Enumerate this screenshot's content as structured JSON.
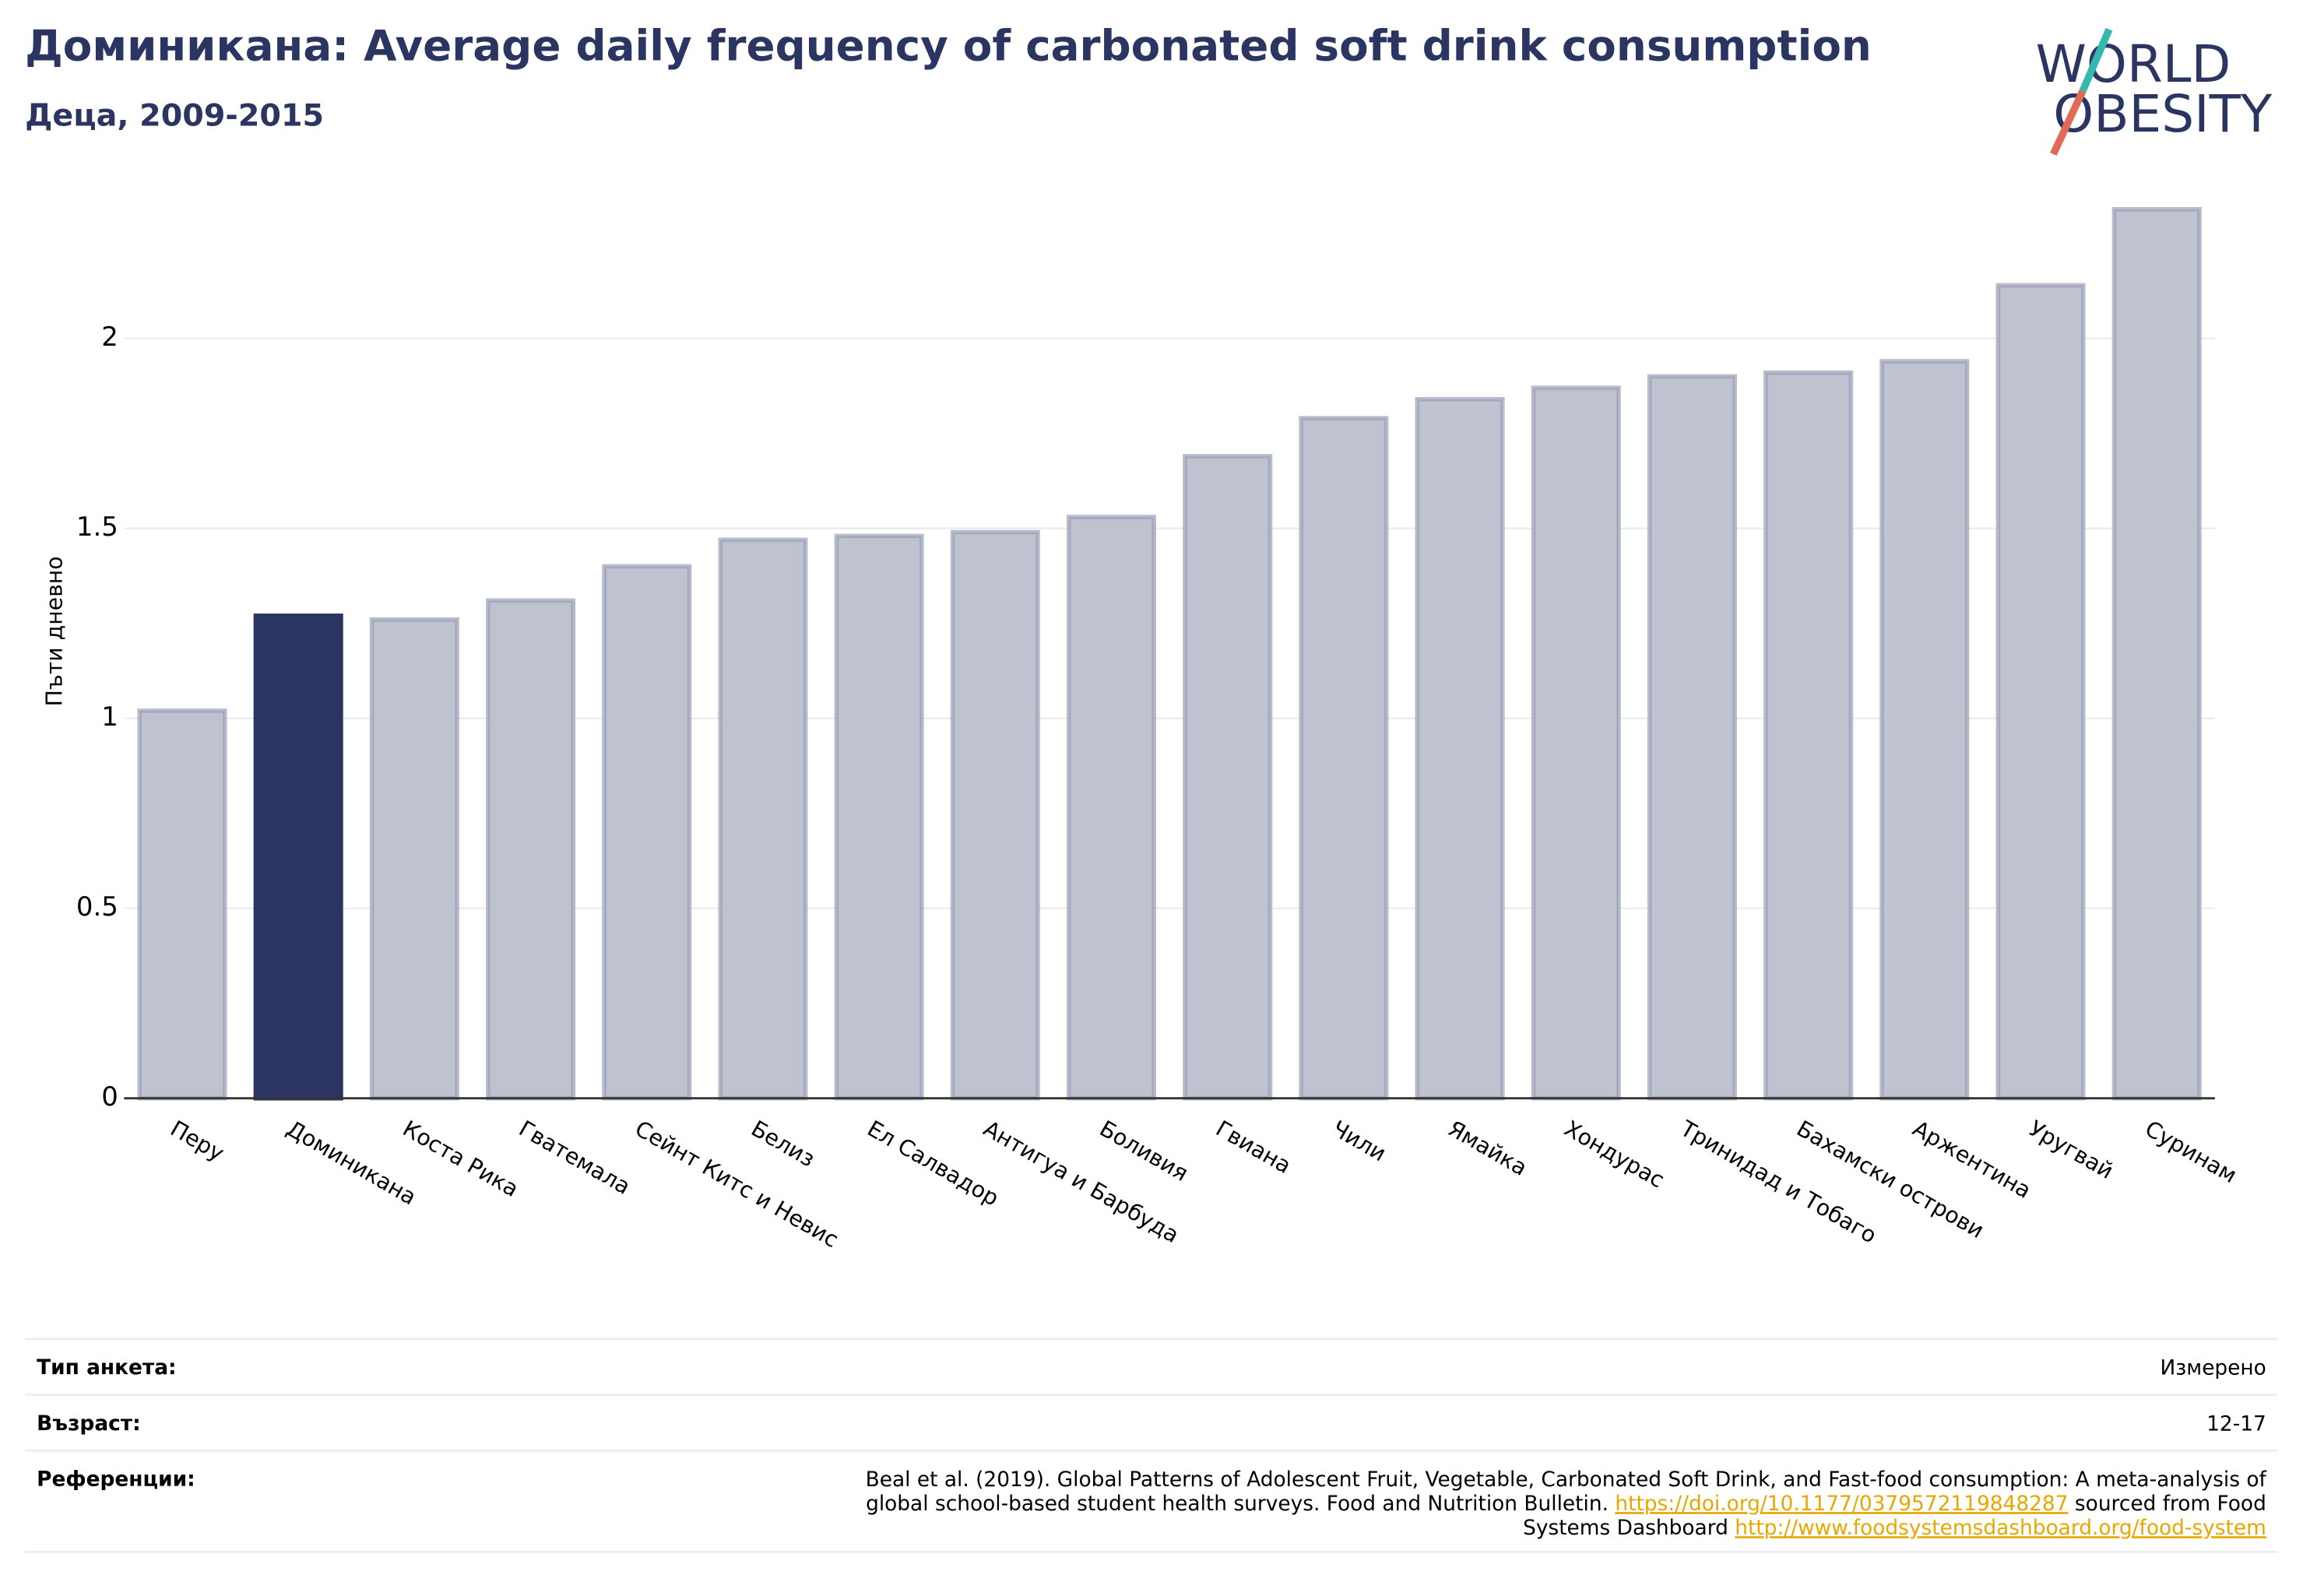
{
  "chart_data": {
    "type": "bar",
    "title": "Доминикана: Average daily frequency of carbonated soft drink consumption",
    "subtitle": "Деца, 2009-2015",
    "logo": [
      "WORLD",
      "OBESITY"
    ],
    "ylabel": "Пъти дневно",
    "categories": [
      "Перу",
      "Доминикана",
      "Коста Рика",
      "Гватемала",
      "Сейнт Китс и Невис",
      "Белиз",
      "Ел Салвадор",
      "Антигуа и Барбуда",
      "Боливия",
      "Гвиана",
      "Чили",
      "Ямайка",
      "Хондурас",
      "Тринидад и Тобаго",
      "Бахамски острови",
      "Аржентина",
      "Уругвай",
      "Суринам"
    ],
    "values": [
      1.02,
      1.27,
      1.26,
      1.31,
      1.4,
      1.47,
      1.48,
      1.49,
      1.53,
      1.69,
      1.79,
      1.84,
      1.87,
      1.9,
      1.91,
      1.94,
      2.14,
      2.34
    ],
    "color": "#bfc2cf",
    "highlight": {
      "category": "Доминикана",
      "color": "#2b3561"
    },
    "ylim": [
      0,
      2.4
    ],
    "yticks": [
      0,
      0.5,
      1,
      1.5,
      2
    ],
    "grid": true
  },
  "footer": {
    "rows": [
      {
        "label": "Тип анкета:",
        "value": [
          [
            {
              "text": "Измерено"
            }
          ]
        ]
      },
      {
        "label": "Възраст:",
        "value": [
          [
            {
              "text": "12-17"
            }
          ]
        ]
      },
      {
        "label": "Референции:",
        "value": [
          [
            {
              "text": "Beal et al. (2019). Global Patterns of Adolescent Fruit, Vegetable, Carbonated Soft Drink, and Fast-food consumption: A meta-analysis of"
            }
          ],
          [
            {
              "text": "global school-based student health surveys. Food and Nutrition Bulletin. "
            },
            {
              "text": "https://doi.org/10.1177/0379572119848287",
              "link": true
            },
            {
              "text": " sourced from Food"
            }
          ],
          [
            {
              "text": "Systems Dashboard "
            },
            {
              "text": "http://www.foodsystemsdashboard.org/food-system",
              "link": true
            }
          ]
        ]
      }
    ]
  }
}
